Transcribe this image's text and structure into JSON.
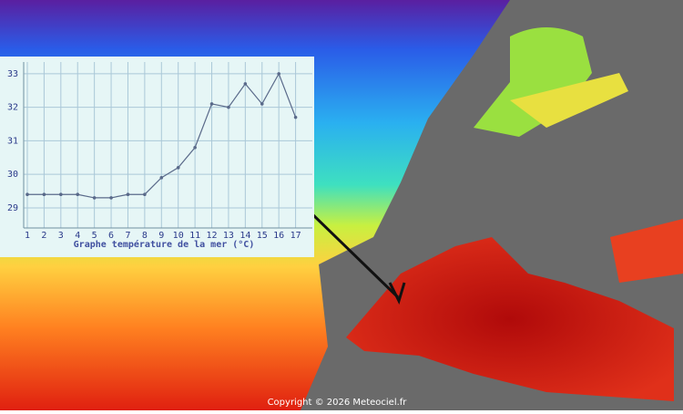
{
  "chart_data": {
    "type": "line",
    "title": "Graphe température de la mer (°C)",
    "x": [
      1,
      2,
      3,
      4,
      5,
      6,
      7,
      8,
      9,
      10,
      11,
      12,
      13,
      14,
      15,
      16,
      17
    ],
    "series": [
      {
        "color": "#5a6a8a",
        "values": [
          29.4,
          29.4,
          29.4,
          29.4,
          29.3,
          29.3,
          29.4,
          29.4,
          29.9,
          30.2,
          30.8,
          32.1,
          32.0,
          32.7,
          32.1,
          33.0,
          31.7
        ]
      }
    ],
    "xlim": [
      1,
      18
    ],
    "ylim": [
      28.4,
      33.35
    ],
    "yticks": [
      29,
      30,
      31,
      32,
      33
    ],
    "grid": true
  },
  "credit": "Copyright © 2026 Meteociel.fr"
}
